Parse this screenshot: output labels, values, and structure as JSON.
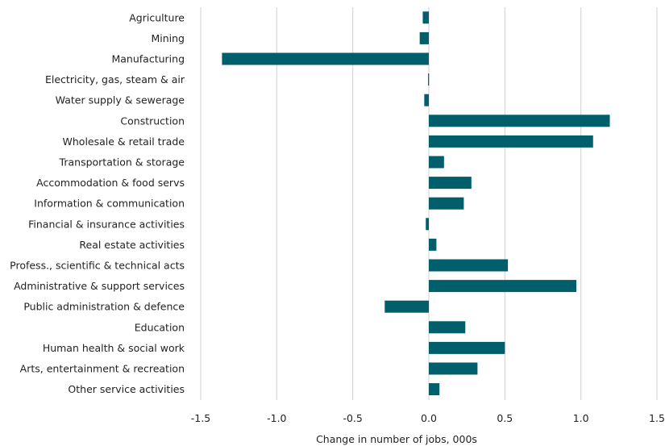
{
  "chart_data": {
    "type": "bar",
    "orientation": "horizontal",
    "title": "",
    "xlabel": "Change in number of jobs, 000s",
    "ylabel": "",
    "xlim": [
      -1.5,
      1.5
    ],
    "xticks": [
      -1.5,
      -1.0,
      -0.5,
      0.0,
      0.5,
      1.0,
      1.5
    ],
    "xtick_labels": [
      "-1.5",
      "-1.0",
      "-0.5",
      "0.0",
      "0.5",
      "1.0",
      "1.5"
    ],
    "grid": "vertical",
    "legend": "none",
    "bar_color": "#005f6b",
    "categories": [
      "Agriculture",
      "Mining",
      "Manufacturing",
      "Electricity, gas, steam & air",
      "Water supply & sewerage",
      "Construction",
      "Wholesale & retail trade",
      "Transportation & storage",
      "Accommodation & food servs",
      "Information & communication",
      "Financial & insurance activities",
      "Real estate activities",
      "Profess., scientific & technical acts",
      "Administrative & support services",
      "Public administration & defence",
      "Education",
      "Human health & social work",
      "Arts, entertainment & recreation",
      "Other service activities"
    ],
    "values": [
      -0.04,
      -0.06,
      -1.36,
      -0.005,
      -0.03,
      1.19,
      1.08,
      0.1,
      0.28,
      0.23,
      -0.02,
      0.05,
      0.52,
      0.97,
      -0.29,
      0.24,
      0.5,
      0.32,
      0.07
    ]
  }
}
